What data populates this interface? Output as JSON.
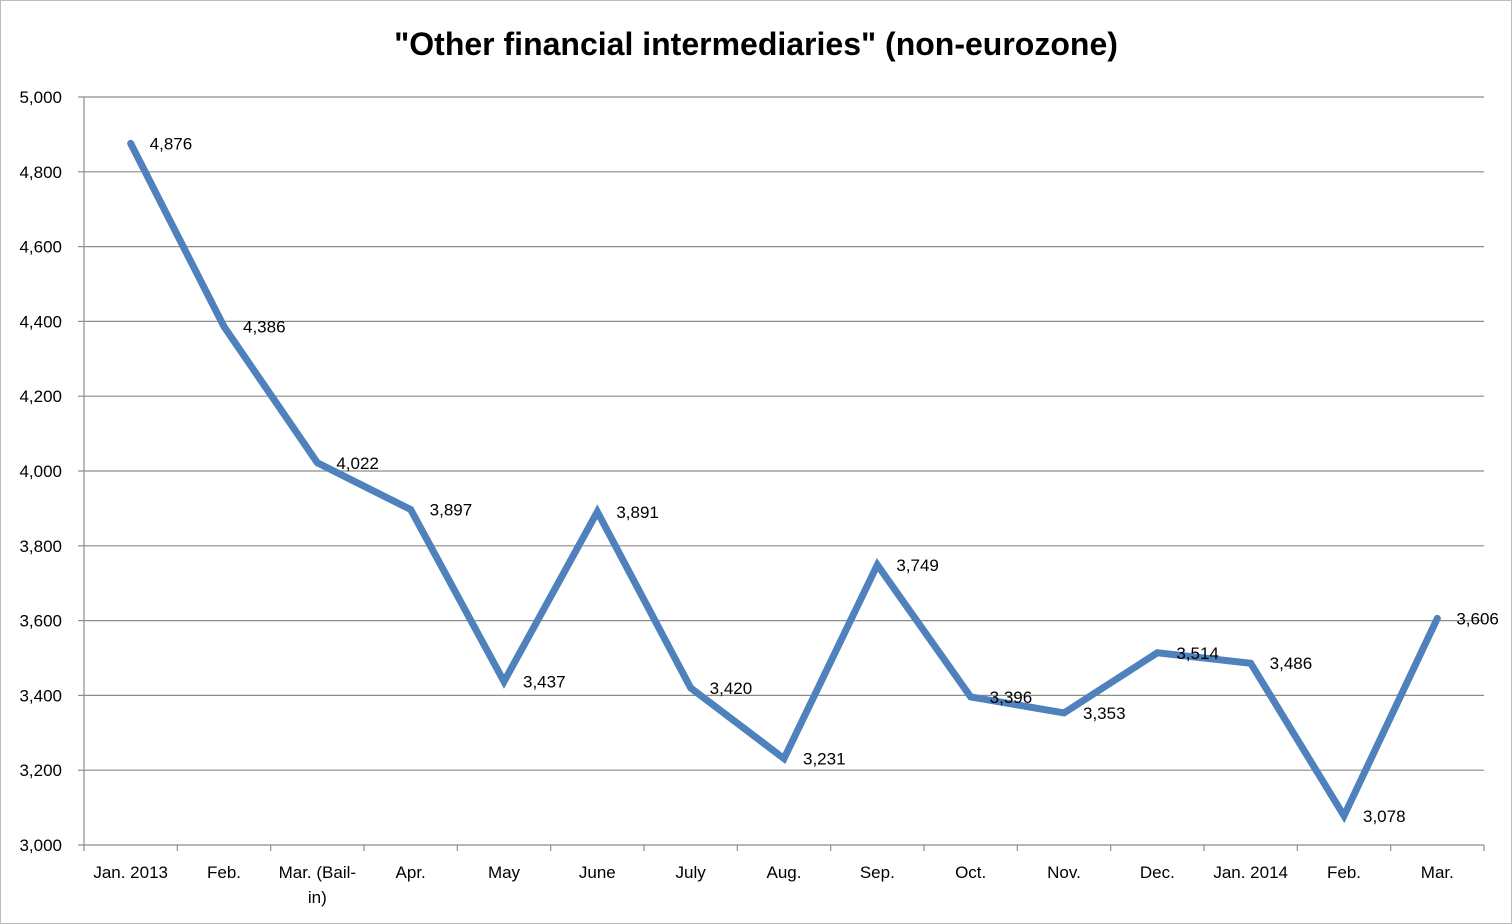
{
  "chart_data": {
    "type": "line",
    "title": "\"Other financial intermediaries\" (non-eurozone)",
    "categories": [
      [
        "Jan. 2013"
      ],
      [
        "Feb."
      ],
      [
        "Mar. (Bail-",
        "in)"
      ],
      [
        "Apr."
      ],
      [
        "May"
      ],
      [
        "June"
      ],
      [
        "July"
      ],
      [
        "Aug."
      ],
      [
        "Sep."
      ],
      [
        "Oct."
      ],
      [
        "Nov."
      ],
      [
        "Dec."
      ],
      [
        "Jan. 2014"
      ],
      [
        "Feb."
      ],
      [
        "Mar."
      ]
    ],
    "series": [
      {
        "values": [
          4876,
          4386,
          4022,
          3897,
          3437,
          3891,
          3420,
          3231,
          3749,
          3396,
          3353,
          3514,
          3486,
          3078,
          3606
        ],
        "labels": [
          "4,876",
          "4,386",
          "4,022",
          "3,897",
          "3,437",
          "3,891",
          "3,420",
          "3,231",
          "3,749",
          "3,396",
          "3,353",
          "3,514",
          "3,486",
          "3,078",
          "3,606"
        ],
        "color": "#4f81bd"
      }
    ],
    "yticks": [
      "3,000",
      "3,200",
      "3,400",
      "3,600",
      "3,800",
      "4,000",
      "4,200",
      "4,400",
      "4,600",
      "4,800",
      "5,000"
    ],
    "ylim": [
      3000,
      5000
    ],
    "ystep": 200,
    "grid": true,
    "legend": "none"
  }
}
